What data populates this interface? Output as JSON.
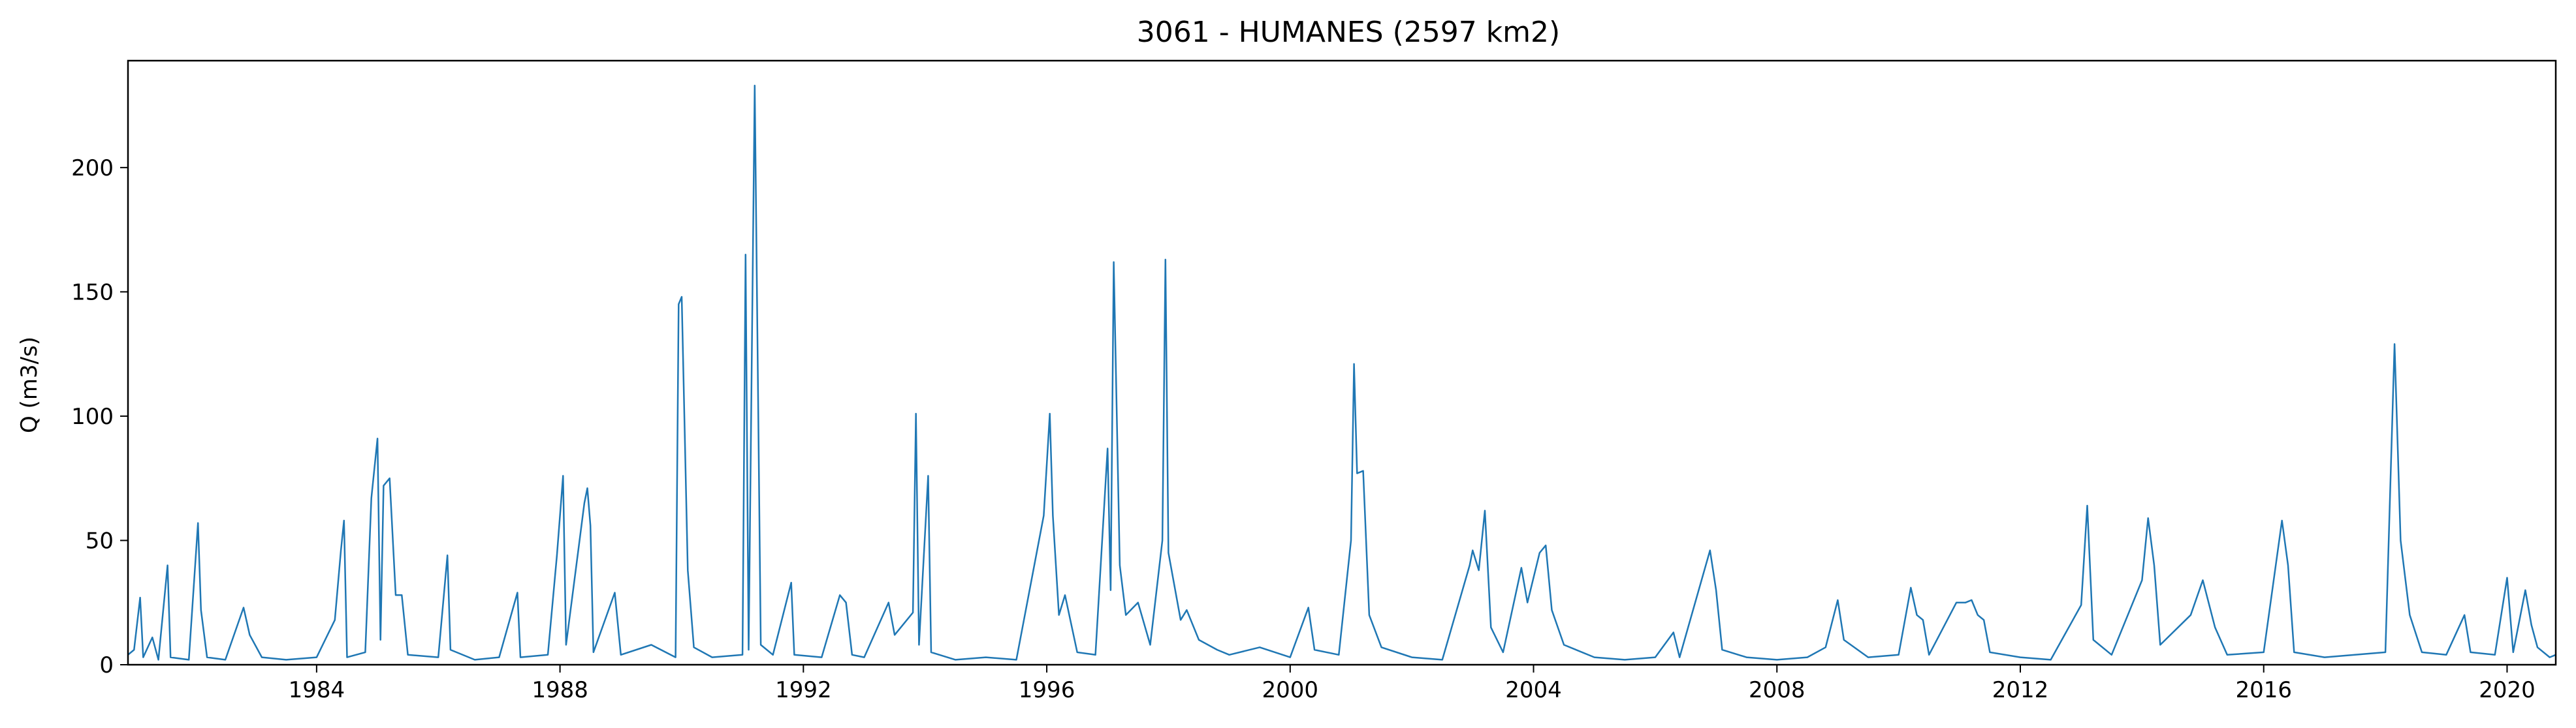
{
  "chart_data": {
    "type": "line",
    "title": "3061 - HUMANES (2597 km2)",
    "xlabel": "",
    "ylabel": "Q (m3/s)",
    "xlim": [
      1980.9,
      2020.8
    ],
    "ylim": [
      0,
      243
    ],
    "x_ticks": [
      1984,
      1988,
      1992,
      1996,
      2000,
      2004,
      2008,
      2012,
      2016,
      2020
    ],
    "y_ticks": [
      0,
      50,
      100,
      150,
      200
    ],
    "grid": false,
    "legend": "none",
    "series_color": "#1f77b4",
    "series": [
      {
        "values": [
          [
            1980.9,
            4
          ],
          [
            1981.0,
            6
          ],
          [
            1981.1,
            27
          ],
          [
            1981.15,
            3
          ],
          [
            1981.3,
            11
          ],
          [
            1981.4,
            2
          ],
          [
            1981.55,
            40
          ],
          [
            1981.6,
            3
          ],
          [
            1981.9,
            2
          ],
          [
            1982.05,
            57
          ],
          [
            1982.1,
            22
          ],
          [
            1982.2,
            3
          ],
          [
            1982.5,
            2
          ],
          [
            1982.8,
            23
          ],
          [
            1982.9,
            12
          ],
          [
            1983.1,
            3
          ],
          [
            1983.5,
            2
          ],
          [
            1984.0,
            3
          ],
          [
            1984.3,
            18
          ],
          [
            1984.4,
            46
          ],
          [
            1984.45,
            58
          ],
          [
            1984.5,
            3
          ],
          [
            1984.8,
            5
          ],
          [
            1984.9,
            67
          ],
          [
            1985.0,
            91
          ],
          [
            1985.05,
            10
          ],
          [
            1985.1,
            72
          ],
          [
            1985.2,
            75
          ],
          [
            1985.3,
            28
          ],
          [
            1985.4,
            28
          ],
          [
            1985.5,
            4
          ],
          [
            1986.0,
            3
          ],
          [
            1986.15,
            44
          ],
          [
            1986.2,
            6
          ],
          [
            1986.6,
            2
          ],
          [
            1987.0,
            3
          ],
          [
            1987.3,
            29
          ],
          [
            1987.35,
            3
          ],
          [
            1987.8,
            4
          ],
          [
            1987.95,
            44
          ],
          [
            1988.05,
            76
          ],
          [
            1988.1,
            8
          ],
          [
            1988.3,
            46
          ],
          [
            1988.4,
            65
          ],
          [
            1988.45,
            71
          ],
          [
            1988.5,
            56
          ],
          [
            1988.55,
            5
          ],
          [
            1988.9,
            29
          ],
          [
            1989.0,
            4
          ],
          [
            1989.5,
            8
          ],
          [
            1989.9,
            3
          ],
          [
            1989.95,
            145
          ],
          [
            1990.0,
            148
          ],
          [
            1990.1,
            38
          ],
          [
            1990.2,
            7
          ],
          [
            1990.5,
            3
          ],
          [
            1991.0,
            4
          ],
          [
            1991.05,
            165
          ],
          [
            1991.1,
            6
          ],
          [
            1991.2,
            233
          ],
          [
            1991.3,
            8
          ],
          [
            1991.5,
            4
          ],
          [
            1991.8,
            33
          ],
          [
            1991.85,
            4
          ],
          [
            1992.3,
            3
          ],
          [
            1992.6,
            28
          ],
          [
            1992.7,
            25
          ],
          [
            1992.8,
            4
          ],
          [
            1993.0,
            3
          ],
          [
            1993.4,
            25
          ],
          [
            1993.5,
            12
          ],
          [
            1993.8,
            21
          ],
          [
            1993.85,
            101
          ],
          [
            1993.9,
            8
          ],
          [
            1994.05,
            76
          ],
          [
            1994.1,
            5
          ],
          [
            1994.5,
            2
          ],
          [
            1995.0,
            3
          ],
          [
            1995.5,
            2
          ],
          [
            1995.95,
            60
          ],
          [
            1996.05,
            101
          ],
          [
            1996.1,
            60
          ],
          [
            1996.2,
            20
          ],
          [
            1996.3,
            28
          ],
          [
            1996.5,
            5
          ],
          [
            1996.8,
            4
          ],
          [
            1997.0,
            87
          ],
          [
            1997.05,
            30
          ],
          [
            1997.1,
            162
          ],
          [
            1997.2,
            40
          ],
          [
            1997.3,
            20
          ],
          [
            1997.5,
            25
          ],
          [
            1997.7,
            8
          ],
          [
            1997.9,
            50
          ],
          [
            1997.95,
            163
          ],
          [
            1998.0,
            45
          ],
          [
            1998.2,
            18
          ],
          [
            1998.3,
            22
          ],
          [
            1998.5,
            10
          ],
          [
            1998.8,
            6
          ],
          [
            1999.0,
            4
          ],
          [
            1999.5,
            7
          ],
          [
            2000.0,
            3
          ],
          [
            2000.3,
            23
          ],
          [
            2000.4,
            6
          ],
          [
            2000.8,
            4
          ],
          [
            2001.0,
            50
          ],
          [
            2001.05,
            121
          ],
          [
            2001.1,
            77
          ],
          [
            2001.2,
            78
          ],
          [
            2001.3,
            20
          ],
          [
            2001.5,
            7
          ],
          [
            2002.0,
            3
          ],
          [
            2002.5,
            2
          ],
          [
            2002.95,
            40
          ],
          [
            2003.0,
            46
          ],
          [
            2003.1,
            38
          ],
          [
            2003.2,
            62
          ],
          [
            2003.3,
            15
          ],
          [
            2003.5,
            5
          ],
          [
            2003.8,
            39
          ],
          [
            2003.9,
            25
          ],
          [
            2004.1,
            45
          ],
          [
            2004.2,
            48
          ],
          [
            2004.3,
            22
          ],
          [
            2004.5,
            8
          ],
          [
            2005.0,
            3
          ],
          [
            2005.5,
            2
          ],
          [
            2006.0,
            3
          ],
          [
            2006.3,
            13
          ],
          [
            2006.4,
            3
          ],
          [
            2006.9,
            46
          ],
          [
            2007.0,
            30
          ],
          [
            2007.1,
            6
          ],
          [
            2007.5,
            3
          ],
          [
            2008.0,
            2
          ],
          [
            2008.5,
            3
          ],
          [
            2008.8,
            7
          ],
          [
            2009.0,
            26
          ],
          [
            2009.1,
            10
          ],
          [
            2009.5,
            3
          ],
          [
            2010.0,
            4
          ],
          [
            2010.2,
            31
          ],
          [
            2010.3,
            20
          ],
          [
            2010.4,
            18
          ],
          [
            2010.5,
            4
          ],
          [
            2010.95,
            25
          ],
          [
            2011.1,
            25
          ],
          [
            2011.2,
            26
          ],
          [
            2011.3,
            20
          ],
          [
            2011.4,
            18
          ],
          [
            2011.5,
            5
          ],
          [
            2012.0,
            3
          ],
          [
            2012.5,
            2
          ],
          [
            2013.0,
            24
          ],
          [
            2013.1,
            64
          ],
          [
            2013.2,
            10
          ],
          [
            2013.5,
            4
          ],
          [
            2014.0,
            34
          ],
          [
            2014.1,
            59
          ],
          [
            2014.2,
            40
          ],
          [
            2014.3,
            8
          ],
          [
            2014.8,
            20
          ],
          [
            2015.0,
            34
          ],
          [
            2015.2,
            15
          ],
          [
            2015.4,
            4
          ],
          [
            2016.0,
            5
          ],
          [
            2016.3,
            58
          ],
          [
            2016.4,
            40
          ],
          [
            2016.5,
            5
          ],
          [
            2017.0,
            3
          ],
          [
            2017.5,
            4
          ],
          [
            2018.0,
            5
          ],
          [
            2018.15,
            129
          ],
          [
            2018.25,
            50
          ],
          [
            2018.4,
            20
          ],
          [
            2018.6,
            5
          ],
          [
            2019.0,
            4
          ],
          [
            2019.3,
            20
          ],
          [
            2019.4,
            5
          ],
          [
            2019.8,
            4
          ],
          [
            2020.0,
            35
          ],
          [
            2020.1,
            5
          ],
          [
            2020.3,
            30
          ],
          [
            2020.4,
            16
          ],
          [
            2020.5,
            7
          ],
          [
            2020.7,
            3
          ],
          [
            2020.8,
            4
          ]
        ]
      }
    ]
  }
}
